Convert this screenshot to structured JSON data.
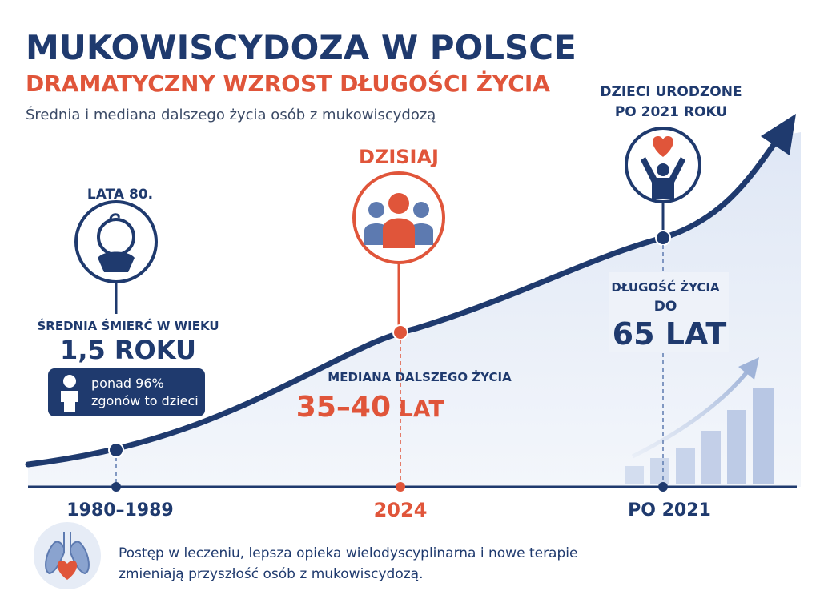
{
  "header": {
    "title": "MUKOWISCYDOZA W POLSCE",
    "subtitle": "DRAMATYCZNY WZROST DŁUGOŚCI ŻYCIA",
    "description": "Średnia i mediana dalszego życia osób z mukowiscydozą"
  },
  "milestones": [
    {
      "period": "LATA 80.",
      "caption": "ŚREDNIA ŚMIERĆ W WIEKU",
      "value": "1,5 ROKU",
      "note_lines": [
        "ponad 96%",
        "zgonów to dzieci"
      ],
      "axis_label": "1980–1989"
    },
    {
      "period": "DZISIAJ",
      "caption": "MEDIANA DALSZEGO ŻYCIA",
      "value": "35–40",
      "unit": "LAT",
      "axis_label": "2024"
    },
    {
      "period_lines": [
        "DZIECI URODZONE",
        "PO 2021 ROKU"
      ],
      "caption_lines": [
        "DŁUGOŚĆ ŻYCIA",
        "DO"
      ],
      "value": "65 LAT",
      "axis_label": "PO 2021"
    }
  ],
  "footer": {
    "lines": [
      "Postęp w leczeniu, lepsza opieka wielodyscyplinarna i nowe terapie",
      "zmieniają przyszłość osób z mukowiscydozą."
    ]
  }
}
